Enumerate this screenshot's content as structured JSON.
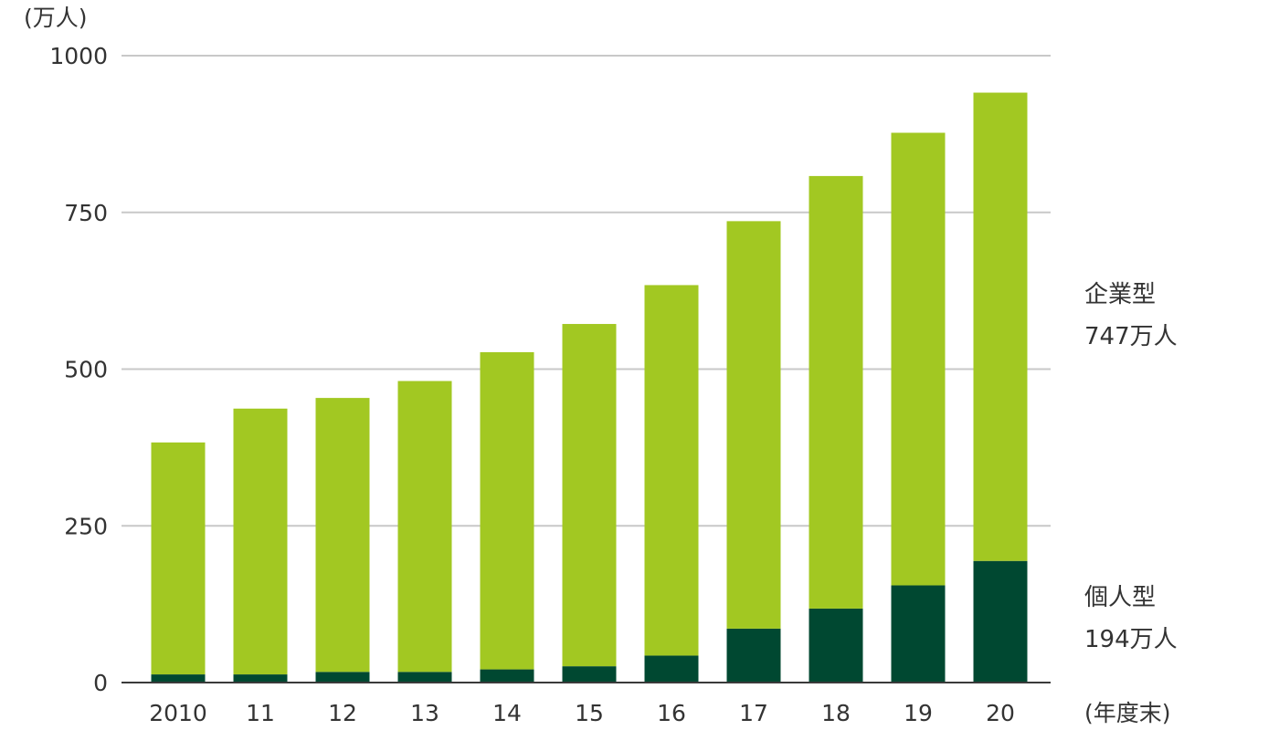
{
  "chart_data": {
    "type": "bar",
    "stacked": true,
    "y_unit": "(万人)",
    "x_unit": "(年度末)",
    "categories": [
      "2010",
      "11",
      "12",
      "13",
      "14",
      "15",
      "16",
      "17",
      "18",
      "19",
      "20"
    ],
    "ylim": [
      0,
      1000
    ],
    "yticks": [
      0,
      250,
      500,
      750,
      1000
    ],
    "grid": true,
    "series": [
      {
        "key": "individual",
        "color": "#004831",
        "values": [
          13,
          13,
          17,
          17,
          21,
          26,
          43,
          86,
          118,
          155,
          194
        ]
      },
      {
        "key": "corporate",
        "color": "#a2c822",
        "values": [
          370,
          424,
          437,
          464,
          506,
          546,
          591,
          650,
          690,
          722,
          747
        ]
      }
    ],
    "annotations": {
      "corporate_name": "企業型",
      "corporate_value": "747万人",
      "individual_name": "個人型",
      "individual_value": "194万人"
    }
  }
}
